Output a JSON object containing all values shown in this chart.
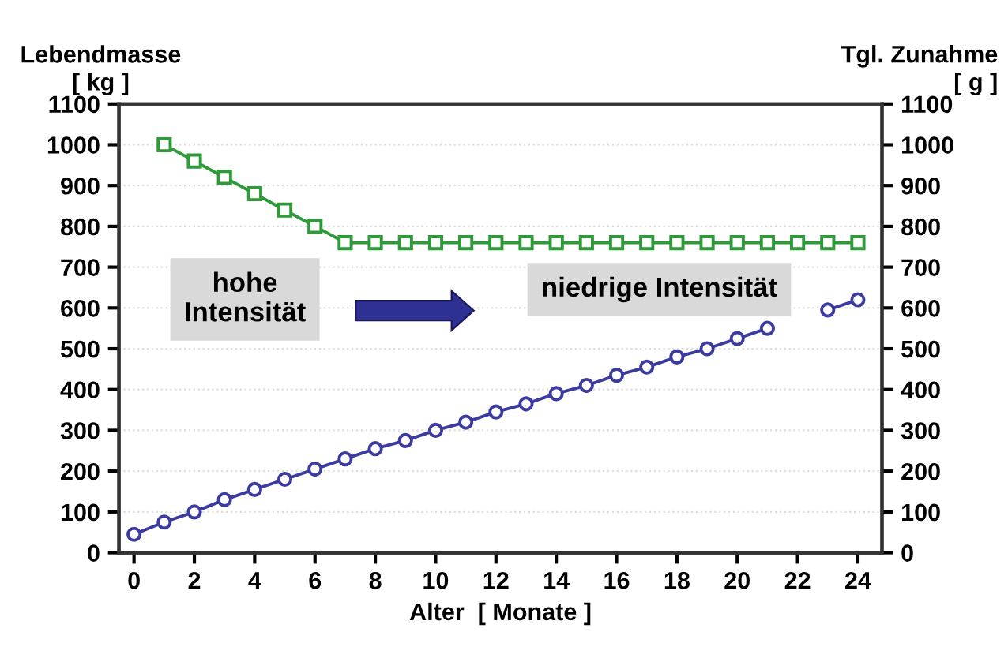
{
  "chart_data": {
    "type": "line",
    "xlabel": "Alter  [ Monate ]",
    "ylabel": "Lebendmasse\n[ kg ]",
    "y2label": "Tgl. Zunahme\n[ g ]",
    "series": [
      {
        "color": "#3c3ca0",
        "marker": "circle",
        "x": [
          0,
          1,
          2,
          3,
          4,
          5,
          6,
          7,
          8,
          9,
          10,
          11,
          12,
          13,
          14,
          15,
          16,
          17,
          18,
          19,
          20,
          21,
          22,
          23,
          24
        ],
        "values": [
          45,
          75,
          100,
          130,
          155,
          180,
          205,
          230,
          255,
          275,
          300,
          320,
          345,
          365,
          390,
          410,
          435,
          455,
          480,
          500,
          525,
          550,
          null,
          595,
          620
        ]
      },
      {
        "color": "#2e9a3a",
        "marker": "square",
        "axis": "y2",
        "x": [
          1,
          2,
          3,
          4,
          5,
          6,
          7,
          8,
          9,
          10,
          11,
          12,
          13,
          14,
          15,
          16,
          17,
          18,
          19,
          20,
          21,
          22,
          23,
          24
        ],
        "values": [
          1000,
          960,
          920,
          880,
          840,
          800,
          760,
          760,
          760,
          760,
          760,
          760,
          760,
          760,
          760,
          760,
          760,
          760,
          760,
          760,
          760,
          760,
          760,
          760
        ]
      }
    ],
    "xlim": [
      -0.5,
      24.8
    ],
    "xticks": [
      0,
      2,
      4,
      6,
      8,
      10,
      12,
      14,
      16,
      18,
      20,
      22,
      24
    ],
    "ylim": [
      0,
      1100
    ],
    "yticks": [
      0,
      100,
      200,
      300,
      400,
      500,
      600,
      700,
      800,
      900,
      1000,
      1100
    ],
    "y2lim": [
      0,
      1100
    ],
    "y2ticks": [
      0,
      100,
      200,
      300,
      400,
      500,
      600,
      700,
      800,
      900,
      1000,
      1100
    ],
    "grid": "y",
    "annotations": [
      "hohe\nIntensität",
      "niedrige Intensität"
    ]
  }
}
